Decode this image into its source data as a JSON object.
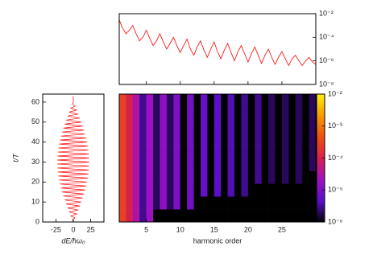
{
  "chart_data": [
    {
      "type": "line",
      "log_y": true,
      "x": [
        1,
        1.5,
        2,
        2.5,
        3,
        3.5,
        4,
        4.5,
        5,
        5.5,
        6,
        6.5,
        7,
        7.5,
        8,
        8.5,
        9,
        9.5,
        10,
        10.5,
        11,
        11.5,
        12,
        12.5,
        13,
        13.5,
        14,
        14.5,
        15,
        15.5,
        16,
        16.5,
        17,
        17.5,
        18,
        18.5,
        19,
        19.5,
        20,
        20.5,
        21,
        21.5,
        22,
        22.5,
        23,
        23.5,
        24,
        24.5,
        25,
        25.5,
        26,
        26.5,
        27,
        27.5,
        28,
        28.5,
        29,
        29.5,
        30
      ],
      "series": [
        {
          "color": "#ff0000",
          "values": [
            0.003,
            0.0006,
            0.0002,
            0.0004,
            0.001,
            0.0002,
            5e-05,
            0.0001,
            0.0004,
            8e-05,
            2e-05,
            5e-05,
            0.0002,
            4e-05,
            1e-05,
            3e-05,
            0.0001,
            2e-05,
            5e-06,
            2e-05,
            7e-05,
            1e-05,
            3e-06,
            1.5e-05,
            5e-05,
            8e-06,
            2e-06,
            1e-05,
            4e-05,
            6e-06,
            1.5e-06,
            8e-06,
            3e-05,
            5e-06,
            1e-06,
            6e-06,
            2e-05,
            4e-06,
            8e-07,
            4e-06,
            1.5e-05,
            3e-06,
            6e-07,
            3e-06,
            1e-05,
            2e-06,
            5e-07,
            2e-06,
            6e-06,
            1.5e-06,
            4e-07,
            1.5e-06,
            3e-06,
            1e-06,
            4e-07,
            1e-06,
            2e-06,
            8e-07,
            5e-07
          ]
        }
      ],
      "xlim": [
        1,
        30
      ],
      "ylim": [
        1e-08,
        0.01
      ],
      "yticks": [
        {
          "value": 0.01,
          "label": "10⁻²"
        },
        {
          "value": 0.0001,
          "label": "10⁻⁴"
        },
        {
          "value": 1e-06,
          "label": "10⁻⁶"
        },
        {
          "value": 1e-08,
          "label": "10⁻⁸"
        }
      ]
    },
    {
      "type": "curve",
      "xlabel": "dE/ħω₀",
      "ylabel": "t/T",
      "color": "#ff0000",
      "x": [
        0,
        -1.2,
        2.4,
        -3.6,
        4.8,
        -6.0,
        7.1,
        -8.2,
        9.3,
        -10.4,
        11.5,
        -12.5,
        13.5,
        -14.4,
        15.3,
        -16.3,
        17.1,
        -17.9,
        18.6,
        -19.3,
        19.9,
        -20.5,
        21.0,
        -21.5,
        21.9,
        -22.2,
        22.5,
        -22.8,
        22.9,
        -23.0,
        23.0,
        -23.0,
        22.9,
        -22.8,
        22.5,
        -22.2,
        21.9,
        -21.5,
        21.0,
        -20.5,
        19.9,
        -19.3,
        18.6,
        -17.9,
        17.1,
        -16.3,
        15.3,
        -14.4,
        13.5,
        -12.5,
        11.5,
        -10.4,
        9.3,
        -8.2,
        7.1,
        -6.0,
        4.8,
        -3.6,
        2.4,
        -1.2,
        0,
        0,
        0,
        0
      ],
      "y": [
        0,
        1,
        2,
        3,
        4,
        5,
        6,
        7,
        8,
        9,
        10,
        11,
        12,
        13,
        14,
        15,
        16,
        17,
        18,
        19,
        20,
        21,
        22,
        23,
        24,
        25,
        26,
        27,
        28,
        29,
        30,
        31,
        32,
        33,
        34,
        35,
        36,
        37,
        38,
        39,
        40,
        41,
        42,
        43,
        44,
        45,
        46,
        47,
        48,
        49,
        50,
        51,
        52,
        53,
        54,
        55,
        56,
        57,
        58,
        59,
        60,
        61,
        62,
        63
      ],
      "xlim": [
        -44,
        44
      ],
      "ylim": [
        0,
        64
      ],
      "xticks": [
        -25,
        0,
        25
      ],
      "yticks": [
        0,
        10,
        20,
        30,
        40,
        50,
        60
      ]
    },
    {
      "type": "heatmap",
      "xlabel": "harmonic order",
      "xbins": [
        1,
        2,
        3,
        4,
        5,
        6,
        7,
        8,
        9,
        10,
        11,
        12,
        13,
        14,
        15,
        16,
        17,
        18,
        19,
        20,
        21,
        22,
        23,
        24,
        25,
        26,
        27,
        28,
        29,
        30
      ],
      "ybins": [
        0,
        6.4,
        12.8,
        19.2,
        25.6,
        32,
        38.4,
        44.8,
        51.2,
        57.6,
        64
      ],
      "z": [
        [
          0.0003,
          0.0001,
          3e-05,
          3e-06,
          2e-05,
          1e-06,
          1e-06,
          1e-06,
          1e-06,
          1e-06,
          1e-06,
          1e-06,
          1e-06,
          1e-06,
          1e-06,
          1e-06,
          1e-06,
          1e-06,
          1e-06,
          1e-06,
          1e-06,
          1e-06,
          1e-06,
          1e-06,
          1e-06,
          1e-06,
          1e-06,
          1e-06,
          1e-06
        ],
        [
          0.0003,
          0.0001,
          3e-05,
          3e-06,
          2e-05,
          2e-06,
          1.5e-05,
          2e-06,
          1e-05,
          1e-06,
          8e-06,
          1e-06,
          1e-06,
          1e-06,
          1e-06,
          1e-06,
          1e-06,
          1e-06,
          1e-06,
          1e-06,
          1e-06,
          1e-06,
          1e-06,
          1e-06,
          1e-06,
          1e-06,
          1e-06,
          1e-06,
          1e-06
        ],
        [
          0.0003,
          0.0001,
          3e-05,
          3e-06,
          2e-05,
          2e-06,
          1.5e-05,
          2e-06,
          1e-05,
          1e-06,
          8e-06,
          1e-06,
          6e-06,
          1e-06,
          5e-06,
          1e-06,
          4e-06,
          1e-06,
          3e-06,
          1e-06,
          1e-06,
          1e-06,
          1e-06,
          1e-06,
          1e-06,
          1e-06,
          1e-06,
          1e-06,
          1e-06
        ],
        [
          0.0003,
          0.0001,
          3e-05,
          3e-06,
          2e-05,
          2e-06,
          1.5e-05,
          2e-06,
          1e-05,
          1e-06,
          8e-06,
          1e-06,
          6e-06,
          1e-06,
          5e-06,
          1e-06,
          4e-06,
          1e-06,
          3e-06,
          1e-06,
          3e-06,
          1e-06,
          2e-06,
          1e-06,
          2e-06,
          1e-06,
          2e-06,
          1e-06,
          1e-06
        ],
        [
          0.0003,
          0.0001,
          3e-05,
          3e-06,
          2e-05,
          2e-06,
          1.5e-05,
          2e-06,
          1e-05,
          1e-06,
          8e-06,
          1e-06,
          6e-06,
          1e-06,
          5e-06,
          1e-06,
          4e-06,
          1e-06,
          3e-06,
          1e-06,
          3e-06,
          1e-06,
          2e-06,
          1e-06,
          2e-06,
          1e-06,
          2e-06,
          1e-06,
          2e-06
        ],
        [
          0.0003,
          0.0001,
          3e-05,
          3e-06,
          2e-05,
          2e-06,
          1.5e-05,
          2e-06,
          1e-05,
          1e-06,
          8e-06,
          1e-06,
          6e-06,
          1e-06,
          5e-06,
          1e-06,
          4e-06,
          1e-06,
          3e-06,
          1e-06,
          3e-06,
          1e-06,
          2e-06,
          1e-06,
          2e-06,
          1e-06,
          2e-06,
          1e-06,
          2e-06
        ],
        [
          0.0003,
          0.0001,
          3e-05,
          3e-06,
          2e-05,
          2e-06,
          1.5e-05,
          2e-06,
          1e-05,
          1e-06,
          8e-06,
          1e-06,
          6e-06,
          1e-06,
          5e-06,
          1e-06,
          4e-06,
          1e-06,
          3e-06,
          1e-06,
          3e-06,
          1e-06,
          2e-06,
          1e-06,
          2e-06,
          1e-06,
          2e-06,
          1e-06,
          2e-06
        ],
        [
          0.0003,
          0.0001,
          3e-05,
          3e-06,
          2e-05,
          2e-06,
          1.5e-05,
          2e-06,
          1e-05,
          1e-06,
          8e-06,
          1e-06,
          6e-06,
          1e-06,
          5e-06,
          1e-06,
          4e-06,
          1e-06,
          3e-06,
          1e-06,
          3e-06,
          1e-06,
          2e-06,
          1e-06,
          2e-06,
          1e-06,
          2e-06,
          1e-06,
          2e-06
        ],
        [
          0.0003,
          0.0001,
          3e-05,
          3e-06,
          2e-05,
          2e-06,
          1.5e-05,
          2e-06,
          1e-05,
          1e-06,
          8e-06,
          1e-06,
          6e-06,
          1e-06,
          5e-06,
          1e-06,
          4e-06,
          1e-06,
          3e-06,
          1e-06,
          3e-06,
          1e-06,
          2e-06,
          1e-06,
          2e-06,
          1e-06,
          2e-06,
          1e-06,
          2e-06
        ],
        [
          0.0003,
          0.0001,
          3e-05,
          3e-06,
          2e-05,
          2e-06,
          1.5e-05,
          2e-06,
          1e-05,
          1e-06,
          8e-06,
          1e-06,
          6e-06,
          1e-06,
          5e-06,
          1e-06,
          4e-06,
          1e-06,
          3e-06,
          1e-06,
          3e-06,
          1e-06,
          2e-06,
          1e-06,
          2e-06,
          1e-06,
          2e-06,
          1e-06,
          2e-06
        ]
      ],
      "xlim": [
        1,
        30
      ],
      "ylim": [
        0,
        64
      ],
      "xticks": [
        5,
        10,
        15,
        20,
        25
      ],
      "colorbar": {
        "log": true,
        "lim": [
          1e-06,
          0.01
        ],
        "colormap": [
          "#000000",
          "#5a10c8",
          "#a010c0",
          "#d82050",
          "#ee5010",
          "#f89a00",
          "#ffee10"
        ],
        "ticks": [
          {
            "value": 0.01,
            "label": "10⁻²"
          },
          {
            "value": 0.001,
            "label": "10⁻³"
          },
          {
            "value": 0.0001,
            "label": "10⁻⁴"
          },
          {
            "value": 1e-05,
            "label": "10⁻⁵"
          },
          {
            "value": 1e-06,
            "label": "10⁻⁶"
          }
        ]
      }
    }
  ]
}
